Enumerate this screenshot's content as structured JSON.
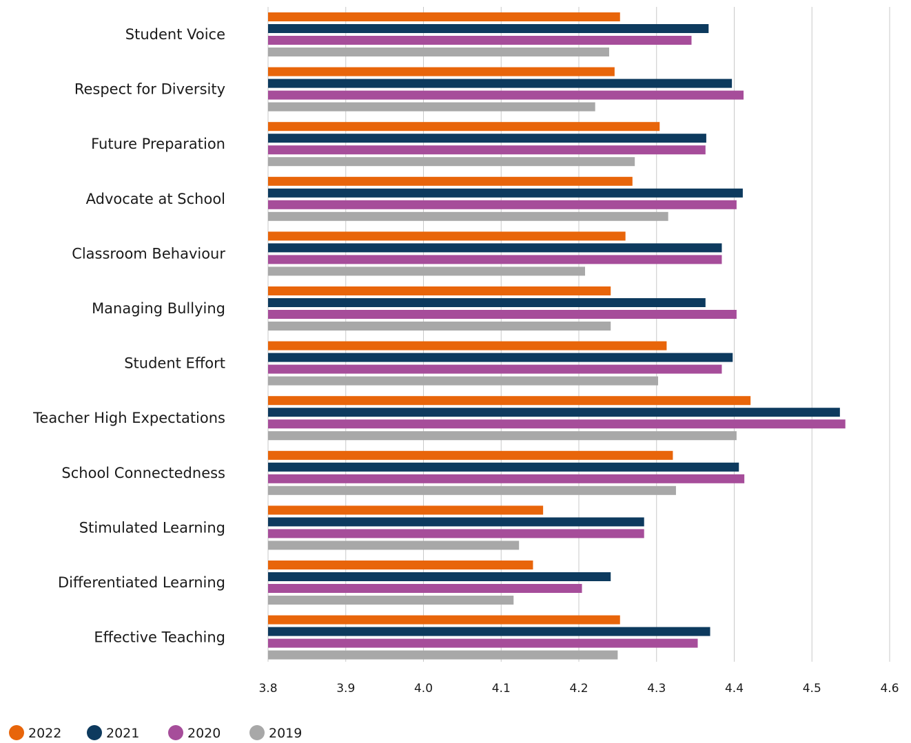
{
  "chart_data": {
    "type": "bar",
    "orientation": "horizontal",
    "title": "",
    "xlabel": "",
    "ylabel": "",
    "xlim": [
      3.8,
      4.6
    ],
    "xticks": [
      "3.8",
      "3.9",
      "4.0",
      "4.1",
      "4.2",
      "4.3",
      "4.4",
      "4.5",
      "4.6"
    ],
    "grid": "vertical",
    "legend_position": "bottom-left",
    "categories": [
      "Student Voice",
      "Respect for Diversity",
      "Future Preparation",
      "Advocate at School",
      "Classroom Behaviour",
      "Managing Bullying",
      "Student Effort",
      "Teacher High Expectations",
      "School Connectedness",
      "Stimulated Learning",
      "Differentiated Learning",
      "Effective Teaching"
    ],
    "series": [
      {
        "name": "2022",
        "color": "#e8650a",
        "values": [
          4.253,
          4.246,
          4.304,
          4.269,
          4.26,
          4.241,
          4.313,
          4.421,
          4.321,
          4.154,
          4.141,
          4.253
        ]
      },
      {
        "name": "2021",
        "color": "#0d3a5e",
        "values": [
          4.367,
          4.397,
          4.364,
          4.411,
          4.384,
          4.363,
          4.398,
          4.536,
          4.406,
          4.284,
          4.241,
          4.369
        ]
      },
      {
        "name": "2020",
        "color": "#a64d9a",
        "values": [
          4.345,
          4.412,
          4.363,
          4.403,
          4.384,
          4.403,
          4.384,
          4.543,
          4.413,
          4.284,
          4.204,
          4.353
        ]
      },
      {
        "name": "2019",
        "color": "#a8a8a8",
        "values": [
          4.239,
          4.221,
          4.272,
          4.315,
          4.208,
          4.241,
          4.302,
          4.403,
          4.325,
          4.123,
          4.116,
          4.25
        ]
      }
    ]
  }
}
